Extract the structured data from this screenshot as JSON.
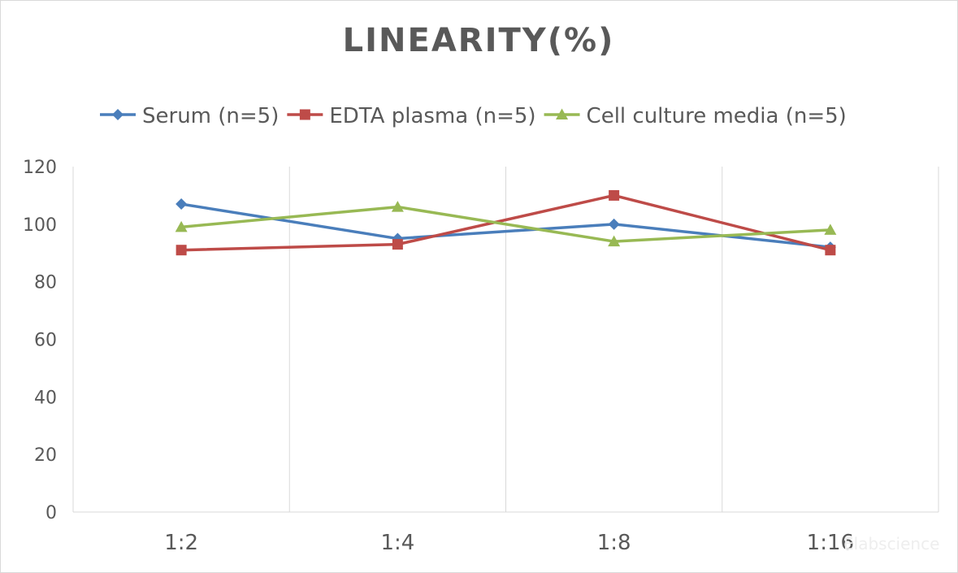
{
  "chart_data": {
    "type": "line",
    "title": "LINEARITY(%)",
    "xlabel": "",
    "ylabel": "",
    "categories": [
      "1:2",
      "1:4",
      "1:8",
      "1:16"
    ],
    "ylim": [
      0,
      120
    ],
    "yticks": [
      0,
      20,
      40,
      60,
      80,
      100,
      120
    ],
    "grid": "vertical",
    "legend_position": "top",
    "series": [
      {
        "name": "Serum (n=5)",
        "color": "#4a7ebb",
        "marker": "diamond",
        "values": [
          107,
          95,
          100,
          92
        ]
      },
      {
        "name": "EDTA plasma (n=5)",
        "color": "#be4b48",
        "marker": "square",
        "values": [
          91,
          93,
          110,
          91
        ]
      },
      {
        "name": "Cell culture media (n=5)",
        "color": "#98b954",
        "marker": "triangle",
        "values": [
          99,
          106,
          94,
          98
        ]
      }
    ]
  },
  "watermark": "Elabscience"
}
